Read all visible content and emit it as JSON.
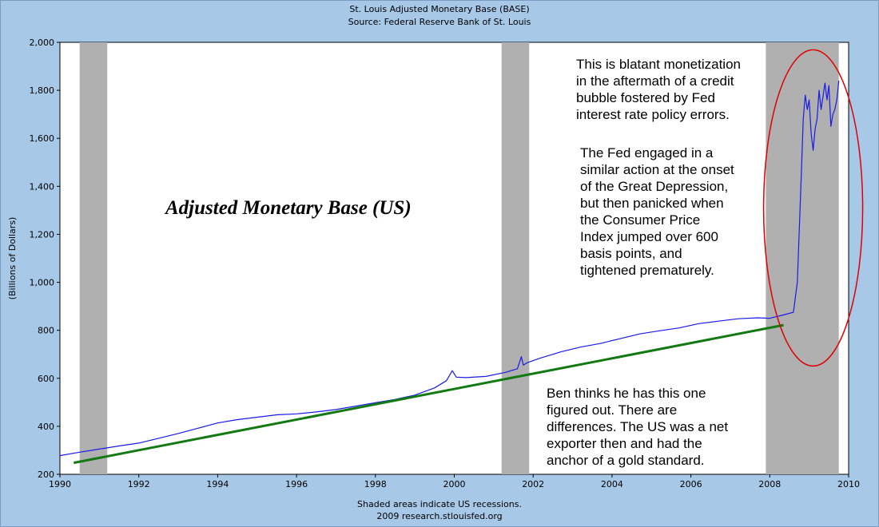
{
  "chart_data": {
    "type": "line",
    "title": "St. Louis Adjusted Monetary Base (BASE)",
    "subtitle": "Source: Federal Reserve Bank of St. Louis",
    "ylabel": "(Billions of Dollars)",
    "xlabel": "",
    "xlim": [
      1990,
      2010
    ],
    "ylim": [
      200,
      2000
    ],
    "x_ticks": [
      "1990",
      "1992",
      "1994",
      "1996",
      "1998",
      "2000",
      "2002",
      "2004",
      "2006",
      "2008",
      "2010"
    ],
    "y_ticks": [
      "200",
      "400",
      "600",
      "800",
      "1,000",
      "1,200",
      "1,400",
      "1,600",
      "1,800",
      "2,000"
    ],
    "recessions": [
      {
        "start": 1990.5,
        "end": 1991.2
      },
      {
        "start": 2001.2,
        "end": 2001.9
      },
      {
        "start": 2007.9,
        "end": 2009.75
      }
    ],
    "series": [
      {
        "name": "Adjusted Monetary Base",
        "color": "#1a1ae6",
        "x": [
          1990.0,
          1990.5,
          1991.0,
          1991.5,
          1992.0,
          1992.5,
          1993.0,
          1993.5,
          1994.0,
          1994.5,
          1995.0,
          1995.5,
          1996.0,
          1996.5,
          1997.0,
          1997.5,
          1998.0,
          1998.5,
          1999.0,
          1999.5,
          1999.8,
          1999.95,
          2000.05,
          2000.3,
          2000.8,
          2001.3,
          2001.6,
          2001.7,
          2001.75,
          2001.85,
          2002.2,
          2002.7,
          2003.2,
          2003.7,
          2004.2,
          2004.7,
          2005.2,
          2005.7,
          2006.2,
          2006.7,
          2007.2,
          2007.7,
          2008.0,
          2008.3,
          2008.6,
          2008.7,
          2008.8,
          2008.85,
          2008.9,
          2008.95,
          2009.0,
          2009.05,
          2009.1,
          2009.15,
          2009.2,
          2009.25,
          2009.3,
          2009.4,
          2009.45,
          2009.5,
          2009.55,
          2009.6,
          2009.65,
          2009.7,
          2009.75
        ],
        "values": [
          278,
          292,
          305,
          318,
          330,
          350,
          370,
          392,
          414,
          428,
          438,
          448,
          452,
          460,
          470,
          484,
          498,
          512,
          530,
          560,
          590,
          632,
          605,
          603,
          608,
          625,
          640,
          690,
          655,
          665,
          685,
          710,
          730,
          745,
          765,
          785,
          798,
          810,
          828,
          838,
          848,
          852,
          850,
          862,
          875,
          1000,
          1450,
          1680,
          1780,
          1720,
          1760,
          1620,
          1550,
          1640,
          1680,
          1800,
          1720,
          1830,
          1760,
          1820,
          1650,
          1700,
          1720,
          1760,
          1840
        ]
      },
      {
        "name": "Trend",
        "color": "#137a13",
        "x": [
          1990.35,
          2008.35
        ],
        "values": [
          248,
          822
        ]
      }
    ]
  },
  "annotations": {
    "big_title": "Adjusted Monetary Base (US)",
    "note_monetization": [
      "This is blatant monetization",
      "in the aftermath of a credit",
      "bubble fostered by Fed",
      "interest rate policy errors."
    ],
    "note_depression": [
      "The Fed engaged in a",
      "similar action at the onset",
      "of the Great Depression,",
      "but then panicked when",
      "the Consumer Price",
      "Index jumped over 600",
      "basis points, and",
      "tightened prematurely."
    ],
    "note_ben": [
      "Ben thinks he has this one",
      "figured out.  There are",
      "differences.  The US was a net",
      "exporter then and had the",
      "anchor of a gold standard."
    ]
  },
  "footer": {
    "line1": "Shaded areas indicate US recessions.",
    "line2": "2009 research.stlouisfed.org"
  },
  "colors": {
    "background": "#a8c8e8",
    "plot_bg": "#ffffff",
    "recession": "#b0b0b0",
    "circle": "#e00000"
  }
}
